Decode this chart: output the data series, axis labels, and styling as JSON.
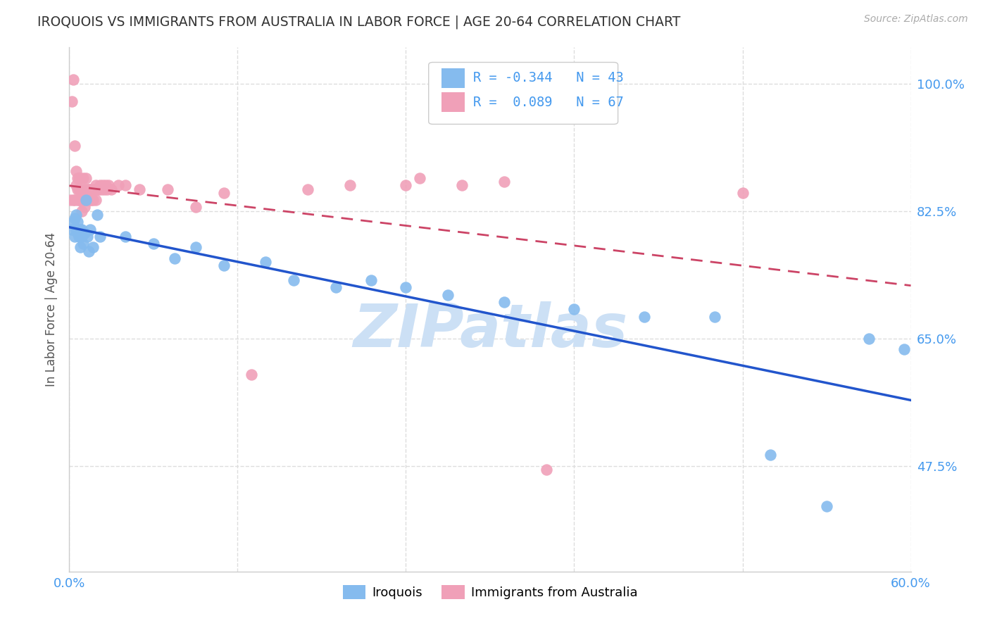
{
  "title": "IROQUOIS VS IMMIGRANTS FROM AUSTRALIA IN LABOR FORCE | AGE 20-64 CORRELATION CHART",
  "source": "Source: ZipAtlas.com",
  "ylabel": "In Labor Force | Age 20-64",
  "xlim": [
    0.0,
    0.6
  ],
  "ylim": [
    0.33,
    1.05
  ],
  "xtick_positions": [
    0.0,
    0.12,
    0.24,
    0.36,
    0.48,
    0.6
  ],
  "xticklabels": [
    "0.0%",
    "",
    "",
    "",
    "",
    "60.0%"
  ],
  "yticks_right": [
    0.475,
    0.65,
    0.825,
    1.0
  ],
  "yticklabels_right": [
    "47.5%",
    "65.0%",
    "82.5%",
    "100.0%"
  ],
  "grid_color": "#dddddd",
  "background_color": "#ffffff",
  "watermark": "ZIPatlas",
  "watermark_color": "#cce0f5",
  "legend_R1": "-0.344",
  "legend_N1": "43",
  "legend_R2": "0.089",
  "legend_N2": "67",
  "blue_color": "#85bbee",
  "pink_color": "#f0a0b8",
  "blue_line_color": "#2255cc",
  "pink_line_color": "#cc4466",
  "iroquois_x": [
    0.002,
    0.003,
    0.004,
    0.004,
    0.005,
    0.005,
    0.006,
    0.006,
    0.007,
    0.007,
    0.008,
    0.008,
    0.009,
    0.009,
    0.01,
    0.01,
    0.011,
    0.012,
    0.013,
    0.014,
    0.015,
    0.017,
    0.02,
    0.022,
    0.04,
    0.06,
    0.075,
    0.09,
    0.11,
    0.14,
    0.16,
    0.19,
    0.215,
    0.24,
    0.27,
    0.31,
    0.36,
    0.41,
    0.46,
    0.5,
    0.54,
    0.57,
    0.595
  ],
  "iroquois_y": [
    0.8,
    0.81,
    0.815,
    0.79,
    0.8,
    0.82,
    0.795,
    0.81,
    0.8,
    0.79,
    0.8,
    0.775,
    0.79,
    0.8,
    0.795,
    0.78,
    0.795,
    0.84,
    0.79,
    0.77,
    0.8,
    0.775,
    0.82,
    0.79,
    0.79,
    0.78,
    0.76,
    0.775,
    0.75,
    0.755,
    0.73,
    0.72,
    0.73,
    0.72,
    0.71,
    0.7,
    0.69,
    0.68,
    0.68,
    0.49,
    0.42,
    0.65,
    0.635
  ],
  "australia_x": [
    0.001,
    0.002,
    0.003,
    0.003,
    0.004,
    0.004,
    0.005,
    0.005,
    0.006,
    0.006,
    0.006,
    0.007,
    0.007,
    0.007,
    0.008,
    0.008,
    0.008,
    0.009,
    0.009,
    0.009,
    0.01,
    0.01,
    0.01,
    0.01,
    0.011,
    0.011,
    0.011,
    0.012,
    0.012,
    0.012,
    0.013,
    0.013,
    0.014,
    0.014,
    0.015,
    0.015,
    0.016,
    0.016,
    0.017,
    0.018,
    0.019,
    0.019,
    0.02,
    0.021,
    0.022,
    0.023,
    0.024,
    0.025,
    0.026,
    0.027,
    0.028,
    0.03,
    0.035,
    0.04,
    0.05,
    0.07,
    0.09,
    0.11,
    0.13,
    0.17,
    0.2,
    0.24,
    0.25,
    0.28,
    0.31,
    0.34,
    0.48
  ],
  "australia_y": [
    0.84,
    0.975,
    0.84,
    1.005,
    0.915,
    0.84,
    0.86,
    0.88,
    0.84,
    0.855,
    0.87,
    0.84,
    0.855,
    0.87,
    0.84,
    0.855,
    0.87,
    0.84,
    0.855,
    0.825,
    0.84,
    0.84,
    0.855,
    0.87,
    0.84,
    0.855,
    0.83,
    0.84,
    0.855,
    0.87,
    0.84,
    0.855,
    0.84,
    0.855,
    0.84,
    0.855,
    0.84,
    0.855,
    0.84,
    0.855,
    0.84,
    0.86,
    0.855,
    0.855,
    0.86,
    0.855,
    0.86,
    0.855,
    0.86,
    0.855,
    0.86,
    0.855,
    0.86,
    0.86,
    0.855,
    0.855,
    0.83,
    0.85,
    0.6,
    0.855,
    0.86,
    0.86,
    0.87,
    0.86,
    0.865,
    0.47,
    0.85
  ]
}
